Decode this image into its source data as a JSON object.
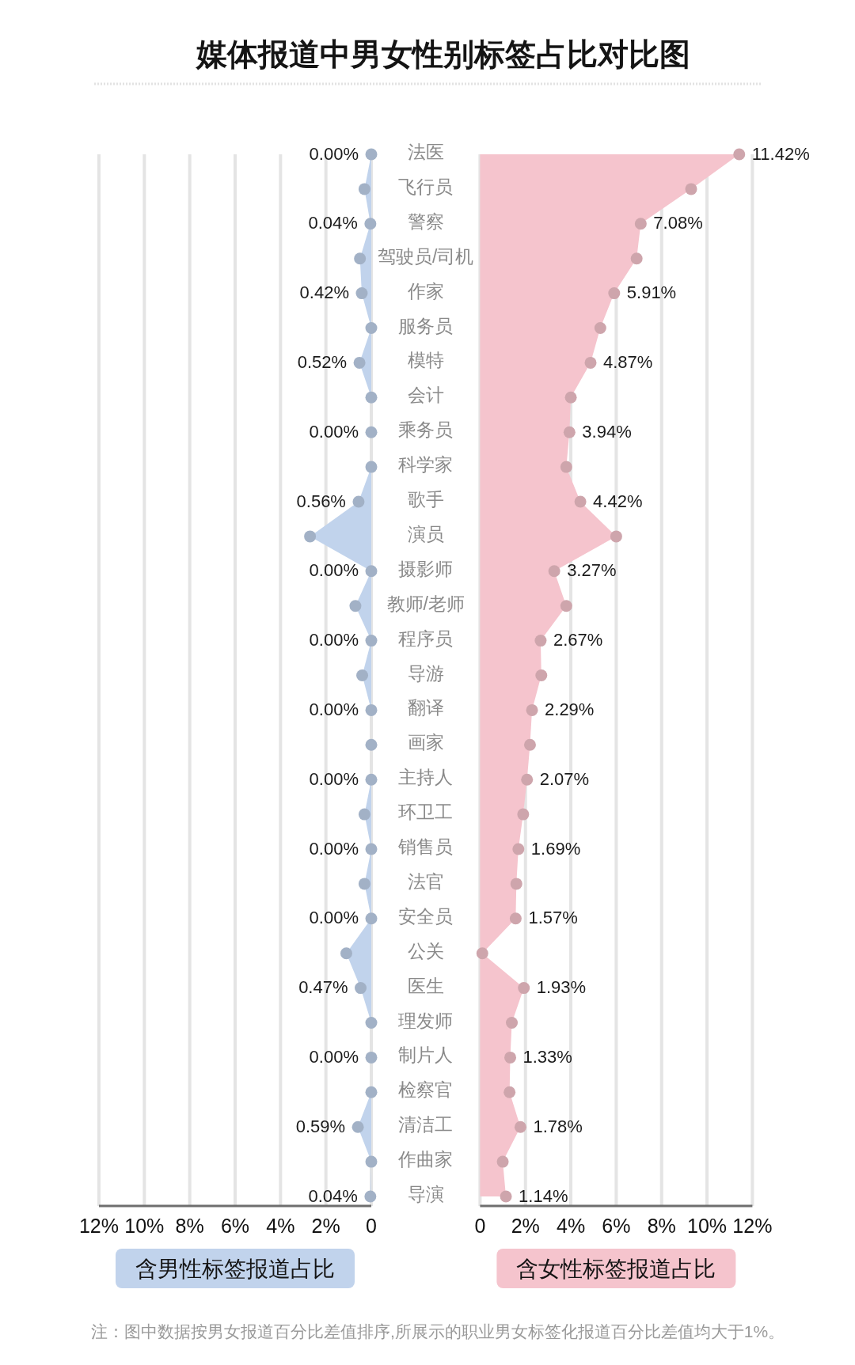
{
  "chart_data": [
    {
      "type": "area",
      "orientation": "horizontal",
      "title": "媒体报道中男女性别标签占比对比图",
      "categories": [
        "法医",
        "飞行员",
        "警察",
        "驾驶员/司机",
        "作家",
        "服务员",
        "模特",
        "会计",
        "乘务员",
        "科学家",
        "歌手",
        "演员",
        "摄影师",
        "教师/老师",
        "程序员",
        "导游",
        "翻译",
        "画家",
        "主持人",
        "环卫工",
        "销售员",
        "法官",
        "安全员",
        "公关",
        "医生",
        "理发师",
        "制片人",
        "检察官",
        "清洁工",
        "作曲家",
        "导演"
      ],
      "series": [
        {
          "name": "含男性标签报道占比",
          "color": "#c1d3ec",
          "values": [
            0,
            0.3,
            0.04,
            0.5,
            0.42,
            0,
            0.52,
            0,
            0,
            0,
            0.56,
            2.7,
            0,
            0.7,
            0,
            0.4,
            0,
            0,
            0,
            0.3,
            0,
            0.3,
            0,
            1.1,
            0.47,
            0,
            0,
            0,
            0.59,
            0,
            0.04
          ],
          "value_labels": [
            "0.00%",
            null,
            "0.04%",
            null,
            "0.42%",
            null,
            "0.52%",
            null,
            "0.00%",
            null,
            "0.56%",
            null,
            "0.00%",
            null,
            "0.00%",
            null,
            "0.00%",
            null,
            "0.00%",
            null,
            "0.00%",
            null,
            "0.00%",
            null,
            "0.47%",
            null,
            "0.00%",
            null,
            "0.59%",
            null,
            "0.04%"
          ]
        }
      ],
      "xlim": [
        12,
        0
      ],
      "xticks": [
        {
          "value": 12,
          "label": "12%"
        },
        {
          "value": 10,
          "label": "10%"
        },
        {
          "value": 8,
          "label": "8%"
        },
        {
          "value": 6,
          "label": "6%"
        },
        {
          "value": 4,
          "label": "4%"
        },
        {
          "value": 2,
          "label": "2%"
        },
        0
      ],
      "grid": "x",
      "marker": "circle",
      "legend": "bottom",
      "annotations": [
        "注：图中数据按男女报道百分比差值排序,所展示的职业男女标签化报道百分比差值均大于1%。"
      ]
    },
    {
      "type": "area",
      "orientation": "horizontal",
      "categories": [
        null,
        null,
        null,
        null,
        null,
        null,
        null,
        null,
        null,
        null,
        null,
        null,
        null,
        null,
        null,
        null,
        null,
        null,
        null,
        null,
        null,
        null,
        null,
        null,
        null,
        null,
        null,
        null,
        null,
        null,
        null
      ],
      "series": [
        {
          "name": "含女性标签报道占比",
          "color": "#f5c4cd",
          "values": [
            11.42,
            9.3,
            7.08,
            6.9,
            5.91,
            5.3,
            4.87,
            4.0,
            3.94,
            3.8,
            4.42,
            6.0,
            3.27,
            3.8,
            2.67,
            2.7,
            2.29,
            2.2,
            2.07,
            1.9,
            1.69,
            1.6,
            1.57,
            0.1,
            1.93,
            1.4,
            1.33,
            1.3,
            1.78,
            1.0,
            1.14
          ],
          "value_labels": [
            "11.42%",
            null,
            "7.08%",
            null,
            "5.91%",
            null,
            "4.87%",
            null,
            "3.94%",
            null,
            "4.42%",
            null,
            "3.27%",
            null,
            "2.67%",
            null,
            "2.29%",
            null,
            "2.07%",
            null,
            "1.69%",
            null,
            "1.57%",
            null,
            "1.93%",
            null,
            "1.33%",
            null,
            "1.78%",
            null,
            "1.14%"
          ]
        }
      ],
      "xlim": [
        0,
        12
      ],
      "xticks": [
        0,
        {
          "value": 2,
          "label": "2%"
        },
        {
          "value": 4,
          "label": "4%"
        },
        {
          "value": 6,
          "label": "6%"
        },
        {
          "value": 8,
          "label": "8%"
        },
        {
          "value": 10,
          "label": "10%"
        },
        {
          "value": 12,
          "label": "12%"
        }
      ],
      "grid": "x",
      "marker": "circle",
      "legend": "bottom",
      "tick_labels": "x"
    }
  ]
}
